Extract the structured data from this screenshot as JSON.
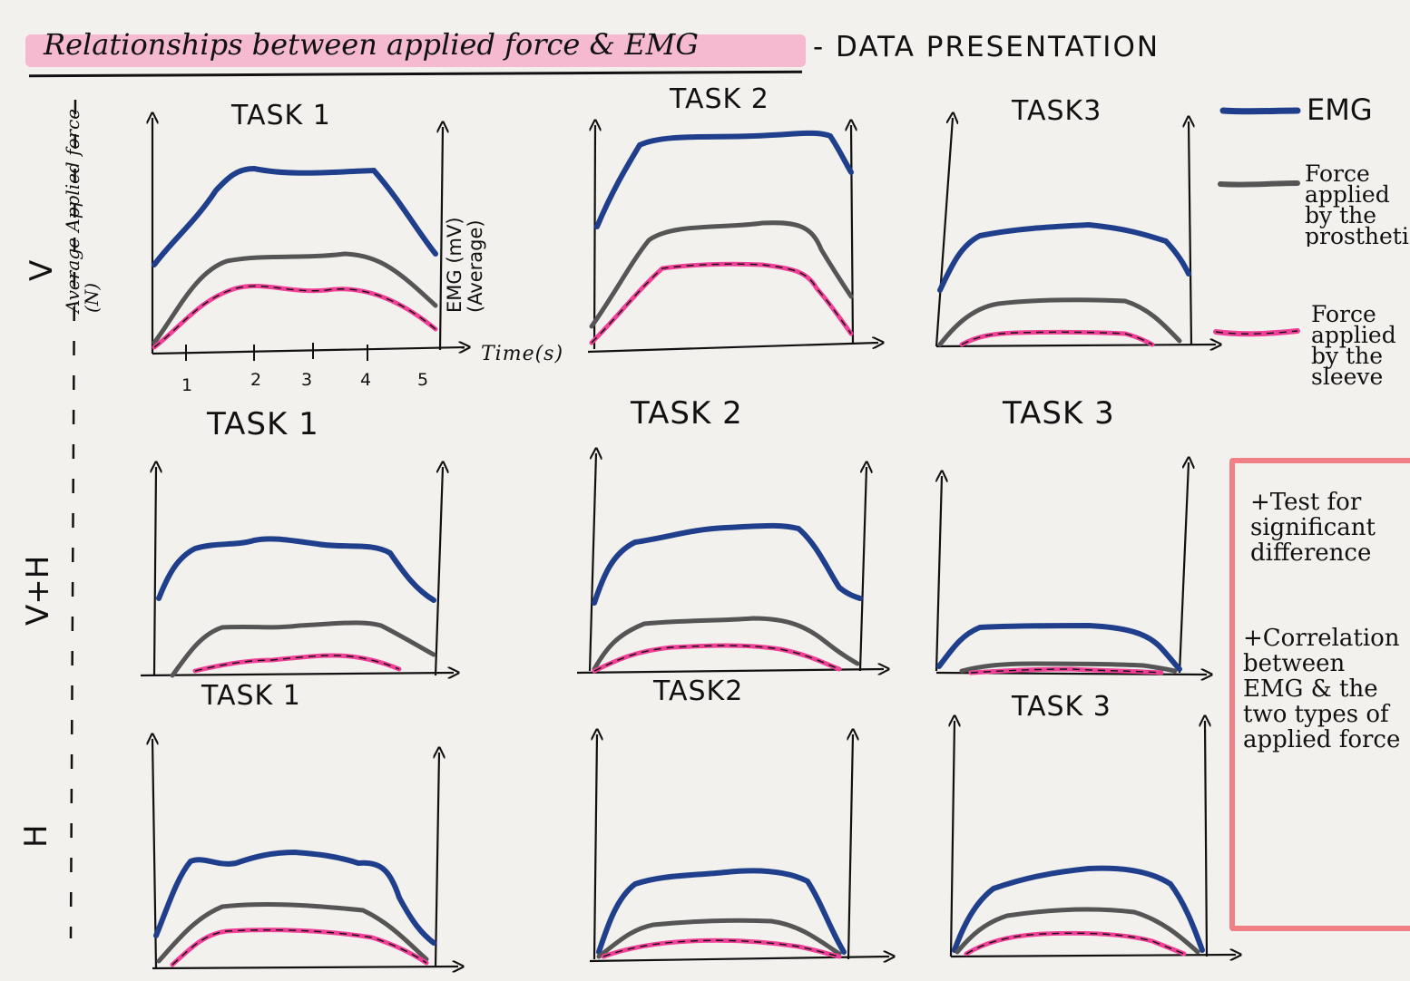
{
  "title": "Relationships between applied force & EMG",
  "subtitle": "- DATA PRESENTATION",
  "rows": [
    {
      "label": "V",
      "tasks": [
        "TASK 1",
        "TASK 2",
        "TASK3"
      ]
    },
    {
      "label": "V+H",
      "tasks": [
        "TASK 1",
        "TASK 2",
        "TASK 3"
      ]
    },
    {
      "label": "H",
      "tasks": [
        "TASK 1",
        "TASK2",
        "TASK 3"
      ]
    }
  ],
  "axes": {
    "y_left": "Average Applied force (N)",
    "y_right": "EMG (mV) (Average)",
    "x": "Time(s)",
    "x_ticks": [
      "1",
      "2",
      "3",
      "4",
      "5"
    ]
  },
  "legend": [
    {
      "label": "EMG",
      "color": "#1f3f8c"
    },
    {
      "label": "Force applied by the prosthetic",
      "color": "#555555"
    },
    {
      "label": "Force applied by the sleeve",
      "color": "#ef3f97"
    }
  ],
  "notes": [
    "+Test for significant difference",
    "+Correlation between EMG & the two types of applied force"
  ],
  "colors": {
    "emg": "#1f3f8c",
    "prosthetic": "#555555",
    "sleeve": "#ef3f97",
    "highlight": "#f6a6c6",
    "box": "#f07f86"
  }
}
